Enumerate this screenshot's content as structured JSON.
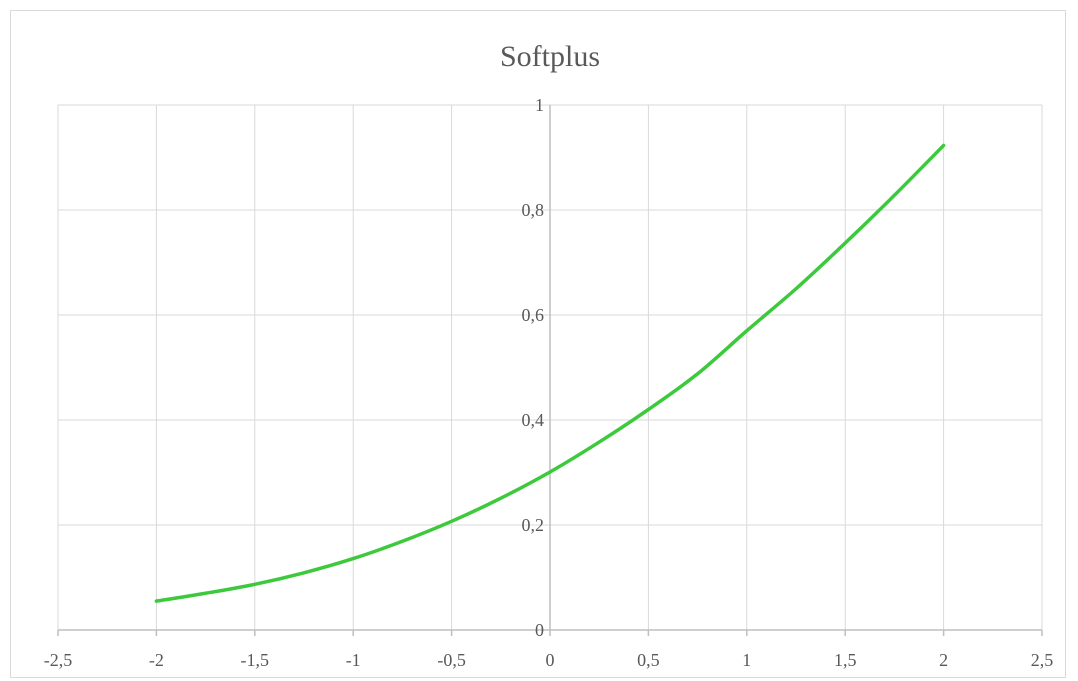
{
  "chart_data": {
    "type": "line",
    "title": "Softplus",
    "xlabel": "",
    "ylabel": "",
    "xlim": [
      -2.5,
      2.5
    ],
    "ylim": [
      0,
      1
    ],
    "x_ticks": [
      "-2,5",
      "-2",
      "-1,5",
      "-1",
      "-0,5",
      "0",
      "0,5",
      "1",
      "1,5",
      "2",
      "2,5"
    ],
    "y_ticks": [
      "0",
      "0,2",
      "0,4",
      "0,6",
      "0,8",
      "1"
    ],
    "grid": true,
    "legend": "none",
    "series": [
      {
        "color": "#3cc93c",
        "x": [
          -2,
          -1.75,
          -1.5,
          -1.25,
          -1,
          -0.75,
          -0.5,
          -0.25,
          0,
          0.25,
          0.5,
          0.75,
          1,
          1.25,
          1.5,
          1.75,
          2
        ],
        "y": [
          0.055,
          0.07,
          0.087,
          0.109,
          0.136,
          0.169,
          0.207,
          0.251,
          0.301,
          0.358,
          0.42,
          0.488,
          0.57,
          0.65,
          0.737,
          0.828,
          0.923
        ]
      }
    ]
  }
}
